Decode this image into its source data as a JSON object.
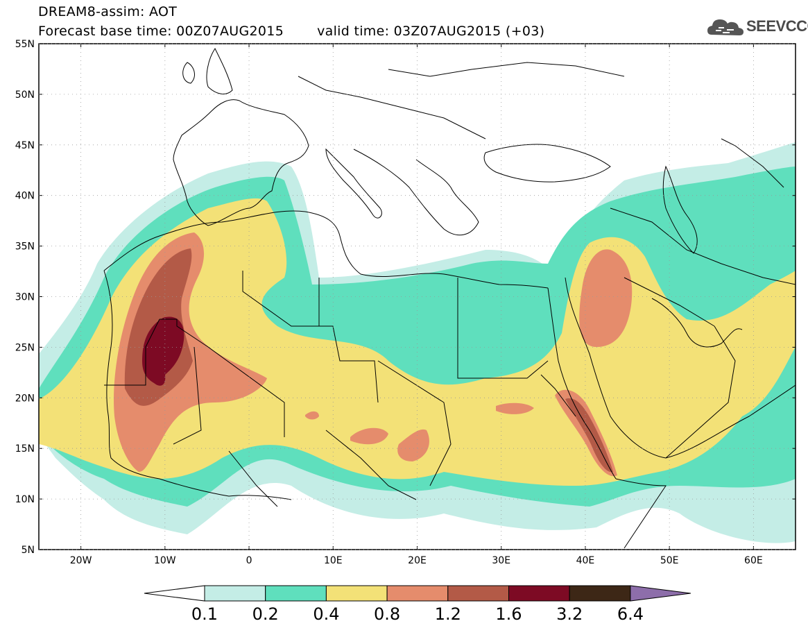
{
  "header": {
    "title": "DREAM8-assim: AOT",
    "base_time_label": "Forecast base time: 00Z07AUG2015",
    "valid_time_label": "valid time: 03Z07AUG2015 (+03)"
  },
  "logo": {
    "text": "SEEVCCC",
    "icon": "cloud-logo-icon"
  },
  "map": {
    "projection": "lat-lon",
    "lon_range": [
      -25,
      65
    ],
    "lat_range": [
      5,
      55
    ],
    "lat_ticks": [
      "55N",
      "50N",
      "45N",
      "40N",
      "35N",
      "30N",
      "25N",
      "20N",
      "15N",
      "10N",
      "5N"
    ],
    "lon_ticks": [
      "20W",
      "10W",
      "0",
      "10E",
      "20E",
      "30E",
      "40E",
      "50E",
      "60E"
    ],
    "field": "aerosol optical thickness (dust)"
  },
  "colorbar": {
    "labels": [
      "0.1",
      "0.2",
      "0.4",
      "0.8",
      "1.2",
      "1.6",
      "3.2",
      "6.4"
    ],
    "colors": {
      "0.1-0.2": "#c4ede6",
      "0.2-0.4": "#5fdfbd",
      "0.4-0.8": "#f3e177",
      "0.8-1.2": "#e58c6c",
      "1.2-1.6": "#b35a47",
      "1.6-3.2": "#7d0a24",
      "3.2-6.4": "#3d2716",
      "above-6.4": "#8d6eaa",
      "below-0.1": "#ffffff"
    }
  }
}
